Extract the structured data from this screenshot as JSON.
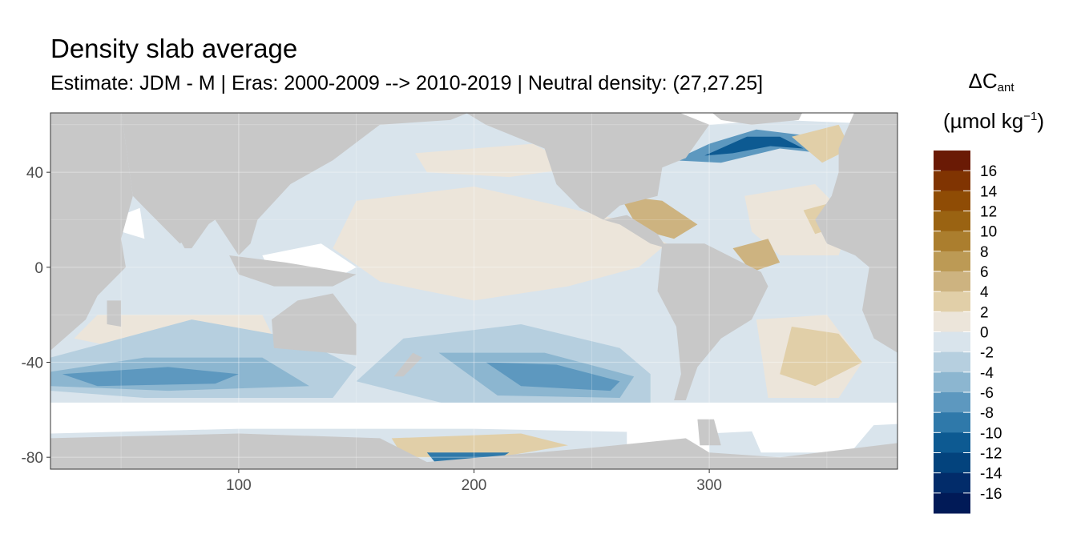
{
  "chart_data": {
    "type": "heatmap",
    "title": "Density slab average",
    "subtitle": "Estimate: JDM - M | Eras: 2000-2009 --> 2010-2019 | Neutral density: (27,27.25]",
    "xlabel": "",
    "ylabel": "",
    "xlim": [
      20,
      380
    ],
    "ylim": [
      -85,
      65
    ],
    "x_ticks": [
      100,
      200,
      300
    ],
    "y_ticks": [
      40,
      0,
      -40,
      -80
    ],
    "grid": true,
    "land_color": "#c8c8c8",
    "no_data_color": "#ffffff",
    "legend": {
      "title_main": "ΔC",
      "title_sub": "ant",
      "unit_prefix": "(µmol kg",
      "unit_sup": "−1",
      "unit_suffix": ")",
      "placement": "right",
      "labels": [
        "16",
        "14",
        "12",
        "10",
        "8",
        "6",
        "4",
        "2",
        "0",
        "-2",
        "-4",
        "-6",
        "-8",
        "-10",
        "-12",
        "-14",
        "-16"
      ],
      "colors": [
        "#6a1a05",
        "#803402",
        "#8f4c05",
        "#9a6312",
        "#ab7e2e",
        "#bc9a55",
        "#cdb380",
        "#e1cfa8",
        "#ece5da",
        "#d9e4ec",
        "#b6cfdf",
        "#8cb6d0",
        "#5d98bf",
        "#2f79aa",
        "#0d5a92",
        "#03437d",
        "#022c6a",
        "#011a57"
      ]
    }
  }
}
